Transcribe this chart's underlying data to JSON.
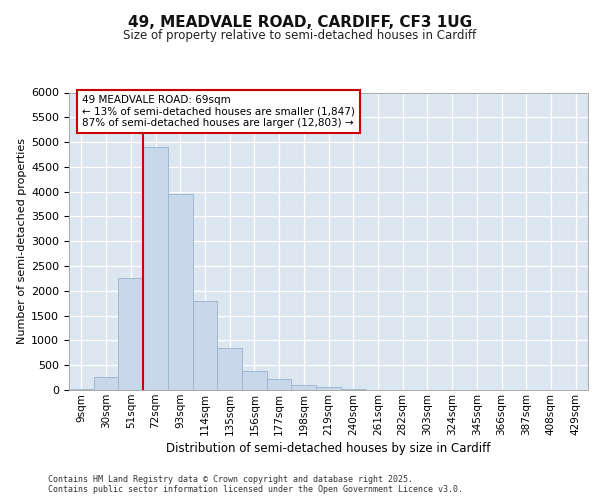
{
  "title_line1": "49, MEADVALE ROAD, CARDIFF, CF3 1UG",
  "title_line2": "Size of property relative to semi-detached houses in Cardiff",
  "xlabel": "Distribution of semi-detached houses by size in Cardiff",
  "ylabel": "Number of semi-detached properties",
  "footnote": "Contains HM Land Registry data © Crown copyright and database right 2025.\nContains public sector information licensed under the Open Government Licence v3.0.",
  "bar_color": "#c8d8ea",
  "bar_edge_color": "#9ab4cc",
  "bg_color": "#dce6f0",
  "grid_color": "#ffffff",
  "fig_bg": "#ffffff",
  "red_color": "#cc0000",
  "categories": [
    "9sqm",
    "30sqm",
    "51sqm",
    "72sqm",
    "93sqm",
    "114sqm",
    "135sqm",
    "156sqm",
    "177sqm",
    "198sqm",
    "219sqm",
    "240sqm",
    "261sqm",
    "282sqm",
    "303sqm",
    "324sqm",
    "345sqm",
    "366sqm",
    "387sqm",
    "408sqm",
    "429sqm"
  ],
  "values": [
    20,
    260,
    2250,
    4900,
    3950,
    1800,
    850,
    390,
    220,
    110,
    60,
    20,
    10,
    5,
    3,
    2,
    1,
    1,
    0,
    0,
    0
  ],
  "ylim": [
    0,
    6000
  ],
  "yticks": [
    0,
    500,
    1000,
    1500,
    2000,
    2500,
    3000,
    3500,
    4000,
    4500,
    5000,
    5500,
    6000
  ],
  "property_size_label": "69sqm",
  "property_name": "49 MEADVALE ROAD",
  "pct_smaller": 13,
  "pct_larger": 87,
  "n_smaller": 1847,
  "n_larger": 12803,
  "red_line_x": 2.5
}
